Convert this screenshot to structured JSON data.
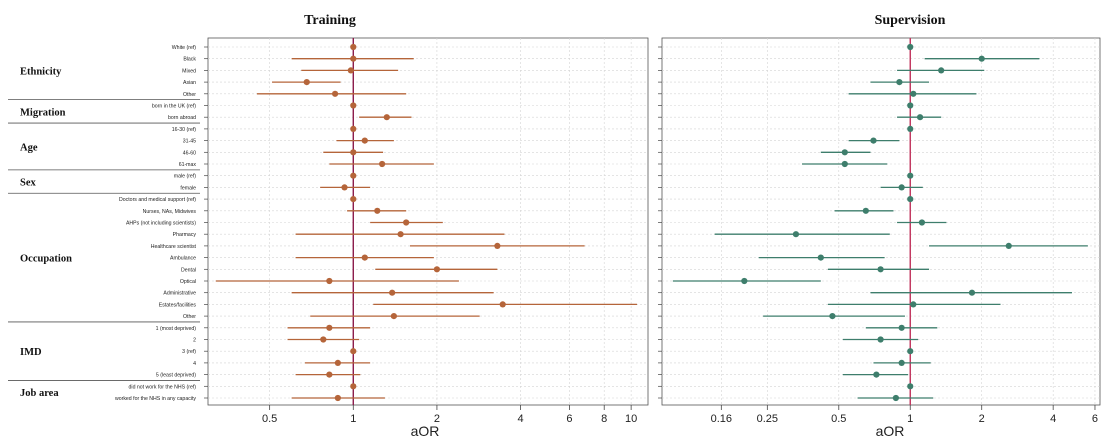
{
  "chart_data": [
    {
      "type": "forest",
      "title": "Training",
      "xlabel": "aOR",
      "ylabel": "",
      "x_scale": "log",
      "xlim": [
        0.3,
        11.5
      ],
      "xticks": [
        0.5,
        1,
        2,
        4,
        6,
        8,
        10
      ],
      "xtick_labels": [
        "0.5",
        "1",
        "2",
        "4",
        "6",
        "8",
        "10"
      ],
      "reference_line": 1,
      "grid": true,
      "point_color": "#b5653a",
      "line_color": "#b5653a",
      "ref_line_color": "#8b1a4a",
      "rows": [
        {
          "label": "White (ref)",
          "or": 1,
          "lo": 1,
          "hi": 1
        },
        {
          "label": "Black",
          "or": 1,
          "lo": 0.6,
          "hi": 1.65
        },
        {
          "label": "Mixed",
          "or": 0.98,
          "lo": 0.65,
          "hi": 1.45
        },
        {
          "label": "Asian",
          "or": 0.68,
          "lo": 0.51,
          "hi": 0.9
        },
        {
          "label": "Other",
          "or": 0.86,
          "lo": 0.45,
          "hi": 1.55
        },
        {
          "label": "born in the UK (ref)",
          "or": 1,
          "lo": 1,
          "hi": 1
        },
        {
          "label": "born abroad",
          "or": 1.32,
          "lo": 1.05,
          "hi": 1.62
        },
        {
          "label": "16-30 (ref)",
          "or": 1,
          "lo": 1,
          "hi": 1
        },
        {
          "label": "31-45",
          "or": 1.1,
          "lo": 0.87,
          "hi": 1.4
        },
        {
          "label": "46-60",
          "or": 1.0,
          "lo": 0.78,
          "hi": 1.28
        },
        {
          "label": "61-max",
          "or": 1.27,
          "lo": 0.82,
          "hi": 1.95
        },
        {
          "label": "male (ref)",
          "or": 1,
          "lo": 1,
          "hi": 1
        },
        {
          "label": "female",
          "or": 0.93,
          "lo": 0.76,
          "hi": 1.15
        },
        {
          "label": "Doctors and medical support (ref)",
          "or": 1,
          "lo": 1,
          "hi": 1
        },
        {
          "label": "Nurses, NAs, Midwives",
          "or": 1.22,
          "lo": 0.95,
          "hi": 1.55
        },
        {
          "label": "AHPs (not including scientists)",
          "or": 1.55,
          "lo": 1.15,
          "hi": 2.1
        },
        {
          "label": "Pharmacy",
          "or": 1.48,
          "lo": 0.62,
          "hi": 3.5
        },
        {
          "label": "Healthcare scientist",
          "or": 3.3,
          "lo": 1.6,
          "hi": 6.8
        },
        {
          "label": "Ambulance",
          "or": 1.1,
          "lo": 0.62,
          "hi": 1.95
        },
        {
          "label": "Dental",
          "or": 2.0,
          "lo": 1.2,
          "hi": 3.3
        },
        {
          "label": "Optical",
          "or": 0.82,
          "lo": 0.32,
          "hi": 2.4
        },
        {
          "label": "Administrative",
          "or": 1.38,
          "lo": 0.6,
          "hi": 3.2
        },
        {
          "label": "Estates/facilities",
          "or": 3.45,
          "lo": 1.18,
          "hi": 10.5
        },
        {
          "label": "Other",
          "or": 1.4,
          "lo": 0.7,
          "hi": 2.85
        },
        {
          "label": "1 (most deprived)",
          "or": 0.82,
          "lo": 0.58,
          "hi": 1.15
        },
        {
          "label": "2",
          "or": 0.78,
          "lo": 0.58,
          "hi": 1.05
        },
        {
          "label": "3 (ref)",
          "or": 1,
          "lo": 1,
          "hi": 1
        },
        {
          "label": "4",
          "or": 0.88,
          "lo": 0.67,
          "hi": 1.15
        },
        {
          "label": "5 (least deprived)",
          "or": 0.82,
          "lo": 0.62,
          "hi": 1.06
        },
        {
          "label": "did not work for the NHS (ref)",
          "or": 1,
          "lo": 1,
          "hi": 1
        },
        {
          "label": "worked for the NHS in any capacity",
          "or": 0.88,
          "lo": 0.6,
          "hi": 1.3
        }
      ],
      "groups": [
        {
          "label": "Ethnicity",
          "start": 0,
          "end": 4
        },
        {
          "label": "Migration",
          "start": 5,
          "end": 6
        },
        {
          "label": "Age",
          "start": 7,
          "end": 10
        },
        {
          "label": "Sex",
          "start": 11,
          "end": 12
        },
        {
          "label": "Occupation",
          "start": 13,
          "end": 23
        },
        {
          "label": "IMD",
          "start": 24,
          "end": 28
        },
        {
          "label": "Job area",
          "start": 29,
          "end": 30
        }
      ]
    },
    {
      "type": "forest",
      "title": "Supervision",
      "xlabel": "aOR",
      "ylabel": "",
      "x_scale": "log",
      "xlim": [
        0.09,
        6.3
      ],
      "xticks": [
        0.16,
        0.25,
        0.5,
        1,
        2,
        4,
        6
      ],
      "xtick_labels": [
        "0.16",
        "0.25",
        "0.5",
        "1",
        "2",
        "4",
        "6"
      ],
      "reference_line": 1,
      "grid": true,
      "point_color": "#3e7e6c",
      "line_color": "#3e7e6c",
      "ref_line_color": "#c0305a",
      "rows": [
        {
          "or": 1,
          "lo": 1,
          "hi": 1
        },
        {
          "or": 2.0,
          "lo": 1.15,
          "hi": 3.5
        },
        {
          "or": 1.35,
          "lo": 0.88,
          "hi": 2.05
        },
        {
          "or": 0.9,
          "lo": 0.68,
          "hi": 1.2
        },
        {
          "or": 1.03,
          "lo": 0.55,
          "hi": 1.9
        },
        {
          "or": 1,
          "lo": 1,
          "hi": 1
        },
        {
          "or": 1.1,
          "lo": 0.88,
          "hi": 1.35
        },
        {
          "or": 1,
          "lo": 1,
          "hi": 1
        },
        {
          "or": 0.7,
          "lo": 0.55,
          "hi": 0.9
        },
        {
          "or": 0.53,
          "lo": 0.42,
          "hi": 0.68
        },
        {
          "or": 0.53,
          "lo": 0.35,
          "hi": 0.8
        },
        {
          "or": 1,
          "lo": 1,
          "hi": 1
        },
        {
          "or": 0.92,
          "lo": 0.75,
          "hi": 1.13
        },
        {
          "or": 1,
          "lo": 1,
          "hi": 1
        },
        {
          "or": 0.65,
          "lo": 0.48,
          "hi": 0.85
        },
        {
          "or": 1.12,
          "lo": 0.88,
          "hi": 1.42
        },
        {
          "or": 0.33,
          "lo": 0.15,
          "hi": 0.82
        },
        {
          "or": 2.6,
          "lo": 1.2,
          "hi": 5.6
        },
        {
          "or": 0.42,
          "lo": 0.23,
          "hi": 0.78
        },
        {
          "or": 0.75,
          "lo": 0.45,
          "hi": 1.2
        },
        {
          "or": 0.2,
          "lo": 0.1,
          "hi": 0.42
        },
        {
          "or": 1.82,
          "lo": 0.68,
          "hi": 4.8
        },
        {
          "or": 1.03,
          "lo": 0.45,
          "hi": 2.4
        },
        {
          "or": 0.47,
          "lo": 0.24,
          "hi": 0.95
        },
        {
          "or": 0.92,
          "lo": 0.65,
          "hi": 1.3
        },
        {
          "or": 0.75,
          "lo": 0.52,
          "hi": 1.08
        },
        {
          "or": 1,
          "lo": 1,
          "hi": 1
        },
        {
          "or": 0.92,
          "lo": 0.7,
          "hi": 1.22
        },
        {
          "or": 0.72,
          "lo": 0.52,
          "hi": 0.98
        },
        {
          "or": 1,
          "lo": 1,
          "hi": 1
        },
        {
          "or": 0.87,
          "lo": 0.6,
          "hi": 1.25
        }
      ]
    }
  ]
}
